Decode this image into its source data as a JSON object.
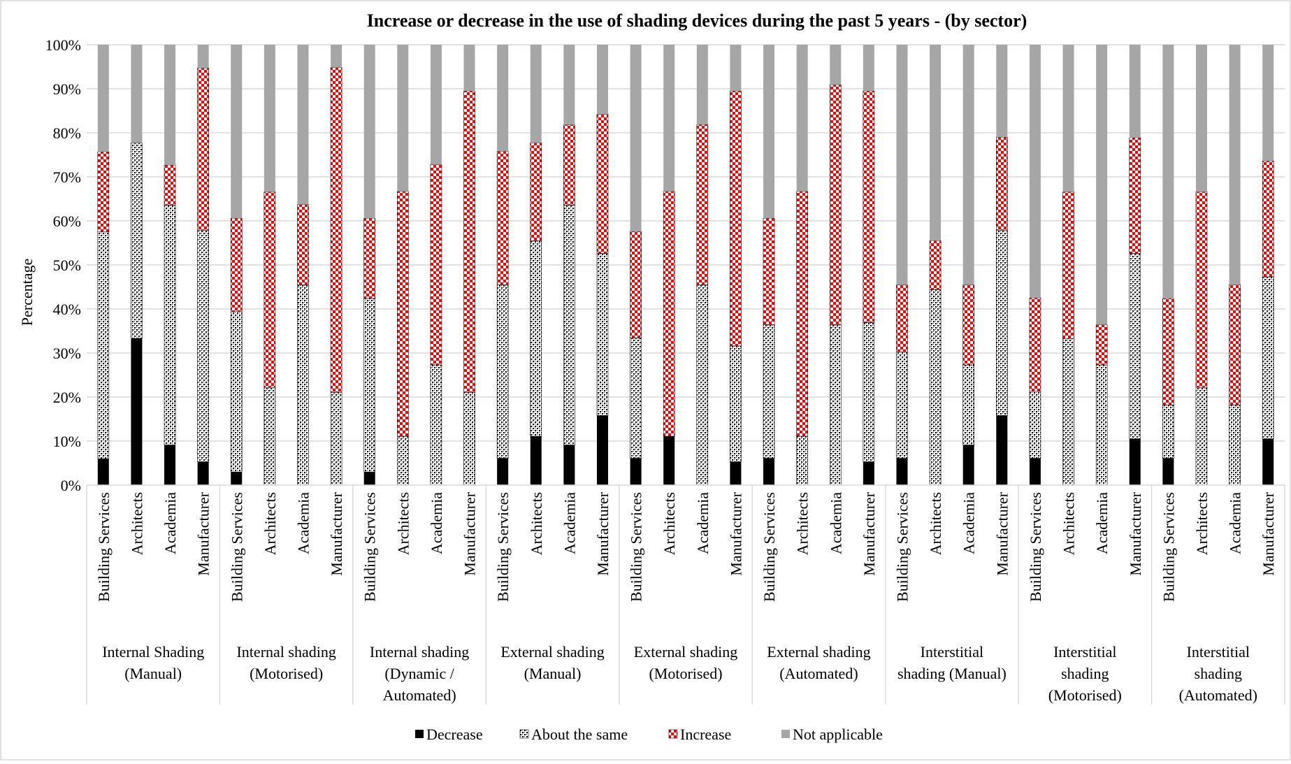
{
  "chart_data": {
    "type": "bar",
    "stacked": true,
    "title": "Increase or decrease in the use of shading devices during the past 5 years - (by sector)",
    "ylabel": "Percentage",
    "xlabel": "",
    "ylim": [
      0,
      100
    ],
    "y_ticks": [
      "0%",
      "10%",
      "20%",
      "30%",
      "40%",
      "50%",
      "60%",
      "70%",
      "80%",
      "90%",
      "100%"
    ],
    "grid": true,
    "legend_position": "bottom",
    "sub_categories": [
      "Building Services",
      "Architects",
      "Academia",
      "Manufacturer"
    ],
    "groups": [
      {
        "label_lines": [
          "Internal Shading",
          "(Manual)"
        ]
      },
      {
        "label_lines": [
          "Internal shading",
          "(Motorised)"
        ]
      },
      {
        "label_lines": [
          "Internal shading",
          "(Dynamic /",
          "Automated)"
        ]
      },
      {
        "label_lines": [
          "External shading",
          "(Manual)"
        ]
      },
      {
        "label_lines": [
          "External shading",
          "(Motorised)"
        ]
      },
      {
        "label_lines": [
          "External shading",
          "(Automated)"
        ]
      },
      {
        "label_lines": [
          "Interstitial",
          "shading (Manual)"
        ]
      },
      {
        "label_lines": [
          "Interstitial",
          "shading",
          "(Motorised)"
        ]
      },
      {
        "label_lines": [
          "Interstitial",
          "shading",
          "(Automated)"
        ]
      }
    ],
    "series": [
      {
        "name": "Decrease",
        "color": "#000000",
        "pattern": "solid",
        "values": [
          6,
          33.3,
          9.1,
          5.3,
          3,
          0,
          0,
          0,
          3,
          0,
          0,
          0,
          6.1,
          11.1,
          9.1,
          15.8,
          6.1,
          11.1,
          0,
          5.3,
          6.1,
          0,
          0,
          5.3,
          6.1,
          0,
          9.1,
          15.8,
          6.1,
          0,
          0,
          10.5,
          6.1,
          0,
          0,
          10.5
        ]
      },
      {
        "name": "About the same",
        "color": "#000000",
        "pattern": "crosshatch",
        "values": [
          51.5,
          44.4,
          54.5,
          52.6,
          36.4,
          22.2,
          45.5,
          21.1,
          39.4,
          11.1,
          27.3,
          21.1,
          39.4,
          44.4,
          54.5,
          36.8,
          27.3,
          0,
          45.5,
          26.3,
          30.3,
          11.1,
          36.4,
          31.6,
          24.2,
          44.4,
          18.2,
          42.1,
          15.2,
          33.3,
          27.3,
          42.1,
          12.1,
          22.2,
          18.2,
          36.8
        ]
      },
      {
        "name": "Increase",
        "color": "#ff0000",
        "pattern": "checker",
        "values": [
          18.2,
          0,
          9.1,
          36.8,
          21.2,
          44.4,
          18.2,
          73.7,
          18.2,
          55.6,
          45.5,
          68.4,
          30.3,
          22.2,
          18.2,
          31.6,
          24.2,
          55.6,
          36.4,
          57.9,
          24.2,
          55.6,
          54.5,
          52.6,
          15.2,
          11.1,
          18.2,
          21.1,
          21.2,
          33.3,
          9.1,
          26.3,
          24.2,
          44.4,
          27.3,
          26.3
        ]
      },
      {
        "name": "Not applicable",
        "color": "#a6a6a6",
        "pattern": "solid",
        "values": [
          24.3,
          22.3,
          27.3,
          5.3,
          39.4,
          33.4,
          36.3,
          5.2,
          39.4,
          33.3,
          27.2,
          10.5,
          24.2,
          22.3,
          18.2,
          15.8,
          42.4,
          33.3,
          18.1,
          10.5,
          39.4,
          33.3,
          9.1,
          10.5,
          54.5,
          44.5,
          54.5,
          21,
          57.5,
          33.4,
          63.6,
          21.1,
          57.6,
          33.4,
          54.5,
          26.4
        ]
      }
    ]
  }
}
